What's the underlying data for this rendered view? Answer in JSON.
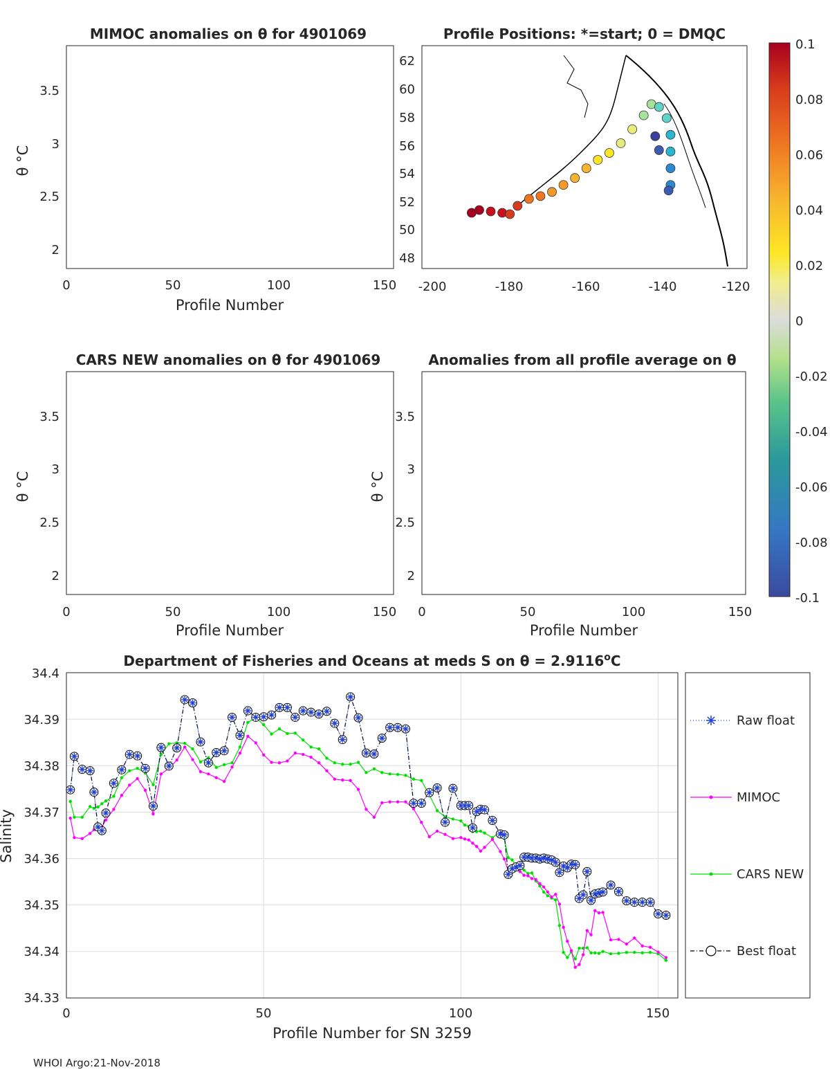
{
  "chart_data": [
    {
      "id": "mimoc_anom",
      "type": "heatmap",
      "title": "MIMOC anomalies on θ  for 4901069",
      "xlabel": "Profile Number",
      "ylabel": "θ °C",
      "xlim": [
        0,
        153
      ],
      "ylim": [
        1.82,
        3.9
      ],
      "xticks": [
        "0",
        "50",
        "100",
        "150"
      ],
      "yticks": [
        "2",
        "2.5",
        "3",
        "3.5"
      ]
    },
    {
      "id": "positions",
      "type": "scatter",
      "title": "Profile Positions: *=start; 0 = DMQC",
      "xlim": [
        -203,
        -118
      ],
      "ylim": [
        47,
        63
      ],
      "xticks": [
        "-200",
        "-180",
        "-160",
        "-140",
        "-120"
      ],
      "yticks": [
        "48",
        "50",
        "52",
        "54",
        "56",
        "58",
        "60",
        "62"
      ],
      "track": [
        [
          -190,
          51
        ],
        [
          -188,
          51.2
        ],
        [
          -185,
          51.1
        ],
        [
          -182,
          51
        ],
        [
          -180,
          50.9
        ],
        [
          -178,
          51.5
        ],
        [
          -175,
          52
        ],
        [
          -172,
          52.2
        ],
        [
          -169,
          52.5
        ],
        [
          -166,
          53
        ],
        [
          -163,
          53.5
        ],
        [
          -160,
          54.2
        ],
        [
          -157,
          54.8
        ],
        [
          -154,
          55.3
        ],
        [
          -151,
          56
        ],
        [
          -148,
          57
        ],
        [
          -145,
          58
        ],
        [
          -143,
          58.8
        ],
        [
          -141,
          58.6
        ],
        [
          -139,
          57.8
        ],
        [
          -138,
          56.6
        ],
        [
          -138,
          55.4
        ],
        [
          -138,
          54.2
        ],
        [
          -138,
          53
        ],
        [
          -138.5,
          52.6
        ],
        [
          -141,
          55.5
        ],
        [
          -142,
          56.5
        ]
      ]
    },
    {
      "id": "cars_anom",
      "type": "heatmap",
      "title": "CARS NEW anomalies on θ for 4901069",
      "xlabel": "Profile Number",
      "ylabel": "θ °C",
      "xlim": [
        0,
        153
      ],
      "ylim": [
        1.82,
        3.9
      ],
      "xticks": [
        "0",
        "50",
        "100",
        "150"
      ],
      "yticks": [
        "2",
        "2.5",
        "3",
        "3.5"
      ]
    },
    {
      "id": "avg_anom",
      "type": "heatmap",
      "title": "Anomalies from all profile average on θ",
      "xlabel": "Profile Number",
      "ylabel": "θ °C",
      "xlim": [
        0,
        153
      ],
      "ylim": [
        1.82,
        3.9
      ],
      "xticks": [
        "0",
        "50",
        "100",
        "150"
      ],
      "yticks": [
        "2",
        "2.5",
        "3",
        "3.5"
      ]
    },
    {
      "id": "salinity",
      "type": "line",
      "title": "Department of Fisheries and Oceans at meds S on θ = 2.9116°C",
      "title_main": "Department of Fisheries and Oceans at meds S on θ = 2.9116",
      "title_sup": "o",
      "title_end": "C",
      "xlabel": "Profile Number for SN 3259",
      "ylabel": "Salinity",
      "xlim": [
        0,
        155
      ],
      "ylim": [
        34.33,
        34.4
      ],
      "xticks": [
        "0",
        "50",
        "100",
        "150"
      ],
      "yticks": [
        "34.33",
        "34.34",
        "34.35",
        "34.36",
        "34.37",
        "34.38",
        "34.39",
        "34.4"
      ],
      "x": [
        1,
        2,
        4,
        6,
        7,
        8,
        9,
        10,
        12,
        14,
        16,
        18,
        20,
        22,
        24,
        26,
        28,
        30,
        32,
        34,
        36,
        38,
        40,
        42,
        44,
        46,
        48,
        50,
        52,
        54,
        56,
        58,
        60,
        62,
        64,
        66,
        68,
        70,
        72,
        74,
        76,
        78,
        80,
        82,
        84,
        86,
        88,
        90,
        92,
        94,
        96,
        98,
        100,
        101,
        102,
        103,
        104,
        105,
        106,
        108,
        110,
        111,
        112,
        113,
        114,
        115,
        116,
        117,
        118,
        119,
        120,
        121,
        122,
        123,
        124,
        125,
        126,
        127,
        128,
        129,
        130,
        131,
        132,
        133,
        134,
        135,
        136,
        138,
        140,
        142,
        144,
        146,
        148,
        150,
        152
      ],
      "series": [
        {
          "name": "Raw float",
          "values": [
            34.3748,
            34.382,
            34.3792,
            34.3789,
            34.3743,
            34.3668,
            34.366,
            34.3698,
            34.3762,
            34.3791,
            34.3824,
            34.3821,
            34.3794,
            34.3713,
            34.3839,
            34.3799,
            34.3838,
            34.3942,
            34.3935,
            34.3851,
            34.3806,
            34.3828,
            34.3832,
            34.3904,
            34.3865,
            34.3918,
            34.3904,
            34.3905,
            34.3909,
            34.3925,
            34.3925,
            34.3904,
            34.3918,
            34.3915,
            34.3911,
            34.3917,
            34.3891,
            34.3856,
            34.3948,
            34.3903,
            34.3827,
            34.3825,
            34.3859,
            34.3882,
            34.3882,
            34.3879,
            34.3719,
            34.3719,
            34.3742,
            34.3752,
            34.3678,
            34.3751,
            34.3714,
            34.3714,
            34.3714,
            34.3666,
            34.3701,
            34.3706,
            34.3705,
            34.3682,
            34.3653,
            34.3651,
            34.3566,
            34.3578,
            34.3582,
            34.3585,
            34.3603,
            34.3603,
            34.3601,
            34.3601,
            34.3599,
            34.3601,
            34.3599,
            34.3597,
            34.3592,
            34.357,
            34.3584,
            34.358,
            34.3588,
            34.3587,
            34.3514,
            34.3522,
            34.3572,
            34.351,
            34.3524,
            34.3526,
            34.3528,
            34.3543,
            34.3529,
            34.3509,
            34.3506,
            34.3506,
            34.3506,
            34.3481,
            34.3478
          ]
        },
        {
          "name": "MIMOC",
          "values": [
            34.3687,
            34.3645,
            34.3643,
            34.3654,
            34.3662,
            34.3665,
            34.3668,
            34.3683,
            34.3706,
            34.3736,
            34.3758,
            34.3772,
            34.3747,
            34.3696,
            34.3782,
            34.3794,
            34.3812,
            34.384,
            34.3813,
            34.3787,
            34.3782,
            34.3774,
            34.3766,
            34.3797,
            34.3827,
            34.3863,
            34.3849,
            34.3823,
            34.3807,
            34.3806,
            34.381,
            34.3827,
            34.3824,
            34.3818,
            34.3806,
            34.3789,
            34.3771,
            34.3769,
            34.3768,
            34.3749,
            34.3706,
            34.3689,
            34.372,
            34.3722,
            34.3722,
            34.3722,
            34.3707,
            34.3678,
            34.3647,
            34.3659,
            34.3652,
            34.3643,
            34.3645,
            34.3642,
            34.364,
            34.3633,
            34.3626,
            34.3616,
            34.3624,
            34.3641,
            34.3615,
            34.3599,
            34.3573,
            34.3575,
            34.3576,
            34.3572,
            34.3564,
            34.3563,
            34.3557,
            34.3555,
            34.3546,
            34.3539,
            34.3528,
            34.3517,
            34.3523,
            34.3502,
            34.3452,
            34.3422,
            34.3402,
            34.3366,
            34.3372,
            34.3393,
            34.3445,
            34.3436,
            34.3488,
            34.3483,
            34.3484,
            34.3425,
            34.3426,
            34.3416,
            34.3429,
            34.3412,
            34.3409,
            34.3399,
            34.3387
          ]
        },
        {
          "name": "CARS NEW",
          "values": [
            34.3723,
            34.3689,
            34.3689,
            34.3712,
            34.3708,
            34.3711,
            34.3718,
            34.3724,
            34.3734,
            34.3774,
            34.3789,
            34.3794,
            34.3784,
            34.3759,
            34.3824,
            34.3847,
            34.3849,
            34.3848,
            34.3836,
            34.3808,
            34.3817,
            34.3796,
            34.3802,
            34.3806,
            34.384,
            34.3893,
            34.3903,
            34.3888,
            34.3868,
            34.3879,
            34.3869,
            34.387,
            34.3855,
            34.384,
            34.3836,
            34.3816,
            34.3806,
            34.3803,
            34.3803,
            34.3807,
            34.3785,
            34.3793,
            34.3785,
            34.3782,
            34.3781,
            34.3779,
            34.3771,
            34.3768,
            34.3737,
            34.3703,
            34.369,
            34.3685,
            34.3681,
            34.3672,
            34.3669,
            34.3658,
            34.3658,
            34.3659,
            34.3655,
            34.3645,
            34.3658,
            34.3643,
            34.3602,
            34.3597,
            34.3585,
            34.3581,
            34.3575,
            34.3568,
            34.3569,
            34.3552,
            34.3541,
            34.3528,
            34.352,
            34.3515,
            34.3511,
            34.3456,
            34.3398,
            34.3387,
            34.3399,
            34.3384,
            34.3407,
            34.3407,
            34.3408,
            34.3397,
            34.3397,
            34.3396,
            34.34,
            34.3395,
            34.3396,
            34.3398,
            34.3398,
            34.3397,
            34.3398,
            34.3395,
            34.3381
          ]
        },
        {
          "name": "Best float",
          "values": [
            34.3748,
            34.382,
            34.3792,
            34.3789,
            34.3743,
            34.3668,
            34.366,
            34.3698,
            34.3762,
            34.3791,
            34.3824,
            34.3821,
            34.3794,
            34.3713,
            34.3839,
            34.3799,
            34.3838,
            34.3942,
            34.3935,
            34.3851,
            34.3806,
            34.3828,
            34.3832,
            34.3904,
            34.3865,
            34.3918,
            34.3904,
            34.3905,
            34.3909,
            34.3925,
            34.3925,
            34.3904,
            34.3918,
            34.3915,
            34.3911,
            34.3917,
            34.3891,
            34.3856,
            34.3948,
            34.3903,
            34.3827,
            34.3825,
            34.3859,
            34.3882,
            34.3882,
            34.3879,
            34.3719,
            34.3719,
            34.3742,
            34.3752,
            34.3678,
            34.3751,
            34.3714,
            34.3714,
            34.3714,
            34.3666,
            34.3701,
            34.3706,
            34.3705,
            34.3682,
            34.3653,
            34.3651,
            34.3566,
            34.3578,
            34.3582,
            34.3585,
            34.3603,
            34.3603,
            34.3601,
            34.3601,
            34.3599,
            34.3601,
            34.3599,
            34.3597,
            34.3592,
            34.357,
            34.3584,
            34.358,
            34.3588,
            34.3587,
            34.3514,
            34.3522,
            34.3572,
            34.351,
            34.3524,
            34.3526,
            34.3528,
            34.3543,
            34.3529,
            34.3509,
            34.3506,
            34.3506,
            34.3506,
            34.3481,
            34.3478
          ]
        }
      ],
      "colors": {
        "Raw float": "#1f3fd6",
        "MIMOC": "#ff00ff",
        "CARS NEW": "#00e000",
        "Best float": "#000000"
      }
    }
  ],
  "colorbar": {
    "ticks": [
      "0.1",
      "0.08",
      "0.06",
      "0.04",
      "0.02",
      "0",
      "-0.02",
      "-0.04",
      "-0.06",
      "-0.08",
      "-0.1"
    ],
    "range": [
      -0.1,
      0.1
    ],
    "colors": [
      "#e8ec7d",
      "#b4e08c",
      "#5ac38a",
      "#2b9a9a",
      "#3577c4",
      "#3b4a9e",
      "#fde725",
      "#f7b42e",
      "#ee7522",
      "#d73a1c",
      "#a8001f"
    ]
  },
  "legend": {
    "raw_float": "Raw float",
    "mimoc": "MIMOC",
    "cars_new": "CARS NEW",
    "best_float": "Best float"
  },
  "footer": "WHOI Argo:21-Nov-2018"
}
